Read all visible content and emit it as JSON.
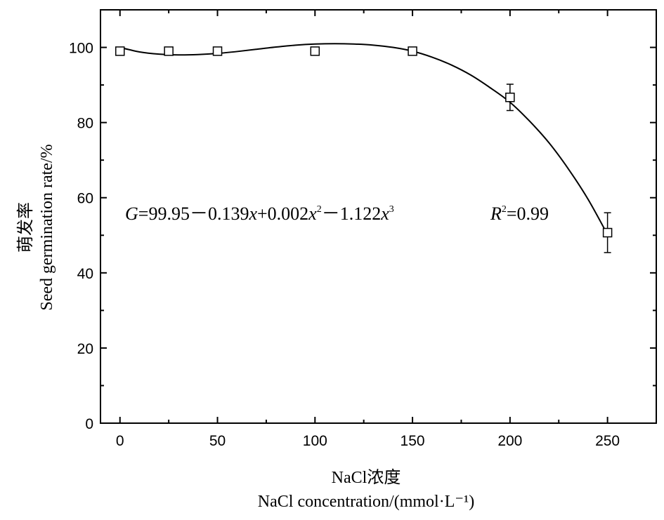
{
  "chart_data": {
    "type": "scatter",
    "x_axis": {
      "label_cn": "NaCl浓度",
      "label_en": "NaCl concentration/(mmol·L⁻¹)",
      "range": [
        -10,
        275
      ],
      "ticks": [
        0,
        50,
        100,
        150,
        200,
        250
      ],
      "minor_ticks": [
        25,
        75,
        125,
        175,
        225
      ]
    },
    "y_axis": {
      "label_cn": "萌发率",
      "label_en": "Seed germination rate/%",
      "range": [
        0,
        110
      ],
      "ticks": [
        0,
        20,
        40,
        60,
        80,
        100
      ],
      "minor_ticks": [
        10,
        30,
        50,
        70,
        90
      ]
    },
    "series": [
      {
        "marker": "open-square",
        "x": [
          0,
          25,
          50,
          100,
          150,
          200,
          250
        ],
        "y": [
          99.0,
          99.0,
          99.0,
          99.0,
          99.0,
          86.7,
          50.7
        ],
        "error": [
          0,
          0,
          0,
          0,
          0,
          3.5,
          5.3
        ]
      }
    ],
    "fit_curve": {
      "x": [
        0,
        10,
        20,
        30,
        40,
        50,
        60,
        70,
        80,
        90,
        100,
        110,
        120,
        130,
        140,
        150,
        160,
        170,
        180,
        190,
        200,
        210,
        220,
        230,
        240,
        250
      ],
      "y": [
        100.0,
        98.8,
        98.2,
        98.0,
        98.1,
        98.4,
        98.9,
        99.5,
        100.1,
        100.6,
        100.9,
        101.0,
        100.9,
        100.6,
        100.0,
        99.0,
        97.4,
        95.3,
        92.6,
        89.2,
        85.4,
        80.4,
        74.6,
        67.6,
        59.6,
        50.2
      ]
    },
    "annotation": {
      "equation_parts": [
        "G",
        "=99.95－0.139",
        "x",
        "+0.002",
        "x",
        "2",
        "－1.122",
        "x",
        "3"
      ],
      "r2_parts": [
        "R",
        "2",
        "=0.99"
      ]
    },
    "grid": false,
    "legend": "none"
  }
}
